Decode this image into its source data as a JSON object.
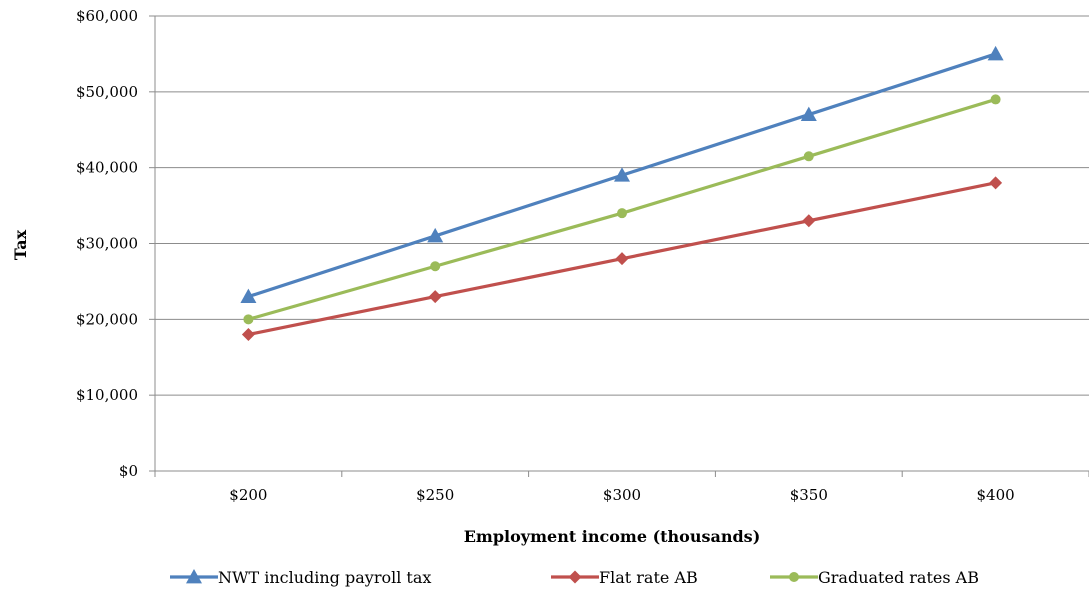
{
  "chart_data": {
    "type": "line",
    "title": "",
    "xlabel": "Employment income (thousands)",
    "ylabel": "Tax",
    "categories": [
      "$200",
      "$250",
      "$300",
      "$350",
      "$400"
    ],
    "y_ticks": [
      "$0",
      "$10,000",
      "$20,000",
      "$30,000",
      "$40,000",
      "$50,000",
      "$60,000"
    ],
    "ylim": [
      0,
      60000
    ],
    "grid": true,
    "legend_position": "bottom",
    "series": [
      {
        "name": "NWT including payroll tax",
        "color": "#4F81BD",
        "marker": "triangle",
        "values": [
          23000,
          31000,
          39000,
          47000,
          55000
        ]
      },
      {
        "name": "Flat rate AB",
        "color": "#C0504D",
        "marker": "diamond",
        "values": [
          18000,
          23000,
          28000,
          33000,
          38000
        ]
      },
      {
        "name": "Graduated rates AB",
        "color": "#9BBB59",
        "marker": "circle",
        "values": [
          20000,
          27000,
          34000,
          41500,
          49000
        ]
      }
    ]
  }
}
